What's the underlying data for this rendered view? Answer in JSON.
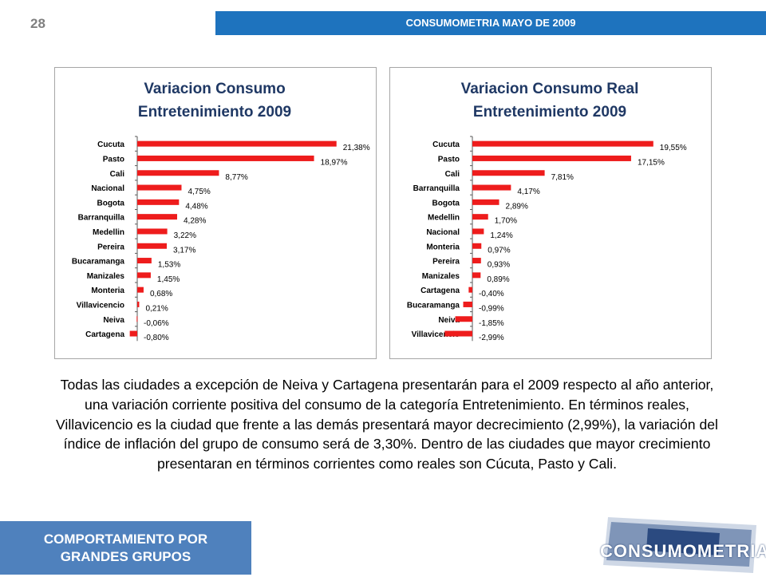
{
  "page_number": "28",
  "header_title": "CONSUMOMETRIA MAYO DE 2009",
  "body_text": "Todas las ciudades a excepción de Neiva y Cartagena presentarán para el 2009 respecto al año anterior, una variación corriente positiva del consumo de la categoría Entretenimiento. En términos reales, Villavicencio es la ciudad que frente a las demás presentará mayor decrecimiento (2,99%), la variación del índice de inflación del grupo de consumo será de 3,30%. Dentro de las ciudades que mayor crecimiento presentaran en términos corrientes como reales son Cúcuta, Pasto y Cali.",
  "footer_label": [
    "COMPORTAMIENTO POR",
    "GRANDES GRUPOS"
  ],
  "logo_text": "CONSUMOMETRIA",
  "colors": {
    "bar": "#ee1c1c",
    "header_bg": "#1e73be",
    "footer_bg": "#4f81bd"
  },
  "chart_data": [
    {
      "type": "bar",
      "orientation": "horizontal",
      "title_lines": [
        "Variacion Consumo",
        "Entretenimiento 2009"
      ],
      "categories": [
        "Cucuta",
        "Pasto",
        "Cali",
        "Nacional",
        "Bogota",
        "Barranquilla",
        "Medellin",
        "Pereira",
        "Bucaramanga",
        "Manizales",
        "Monteria",
        "Villavicencio",
        "Neiva",
        "Cartagena"
      ],
      "values": [
        21.38,
        18.97,
        8.77,
        4.75,
        4.48,
        4.28,
        3.22,
        3.17,
        1.53,
        1.45,
        0.68,
        0.21,
        -0.06,
        -0.8
      ],
      "labels": [
        "21,38%",
        "18,97%",
        "8,77%",
        "4,75%",
        "4,48%",
        "4,28%",
        "3,22%",
        "3,17%",
        "1,53%",
        "1,45%",
        "0,68%",
        "0,21%",
        "-0,06%",
        "-0,80%"
      ],
      "xlim": [
        -1,
        22
      ]
    },
    {
      "type": "bar",
      "orientation": "horizontal",
      "title_lines": [
        "Variacion Consumo Real",
        "Entretenimiento 2009"
      ],
      "categories": [
        "Cucuta",
        "Pasto",
        "Cali",
        "Barranquilla",
        "Bogota",
        "Medellin",
        "Nacional",
        "Monteria",
        "Pereira",
        "Manizales",
        "Cartagena",
        "Bucaramanga",
        "Neiva",
        "Villavicencio"
      ],
      "values": [
        19.55,
        17.15,
        7.81,
        4.17,
        2.89,
        1.7,
        1.24,
        0.97,
        0.93,
        0.89,
        -0.4,
        -0.99,
        -1.85,
        -2.99
      ],
      "labels": [
        "19,55%",
        "17,15%",
        "7,81%",
        "4,17%",
        "2,89%",
        "1,70%",
        "1,24%",
        "0,97%",
        "0,93%",
        "0,89%",
        "-0,40%",
        "-0,99%",
        "-1,85%",
        "-2,99%"
      ],
      "xlim": [
        -3,
        20
      ]
    }
  ]
}
